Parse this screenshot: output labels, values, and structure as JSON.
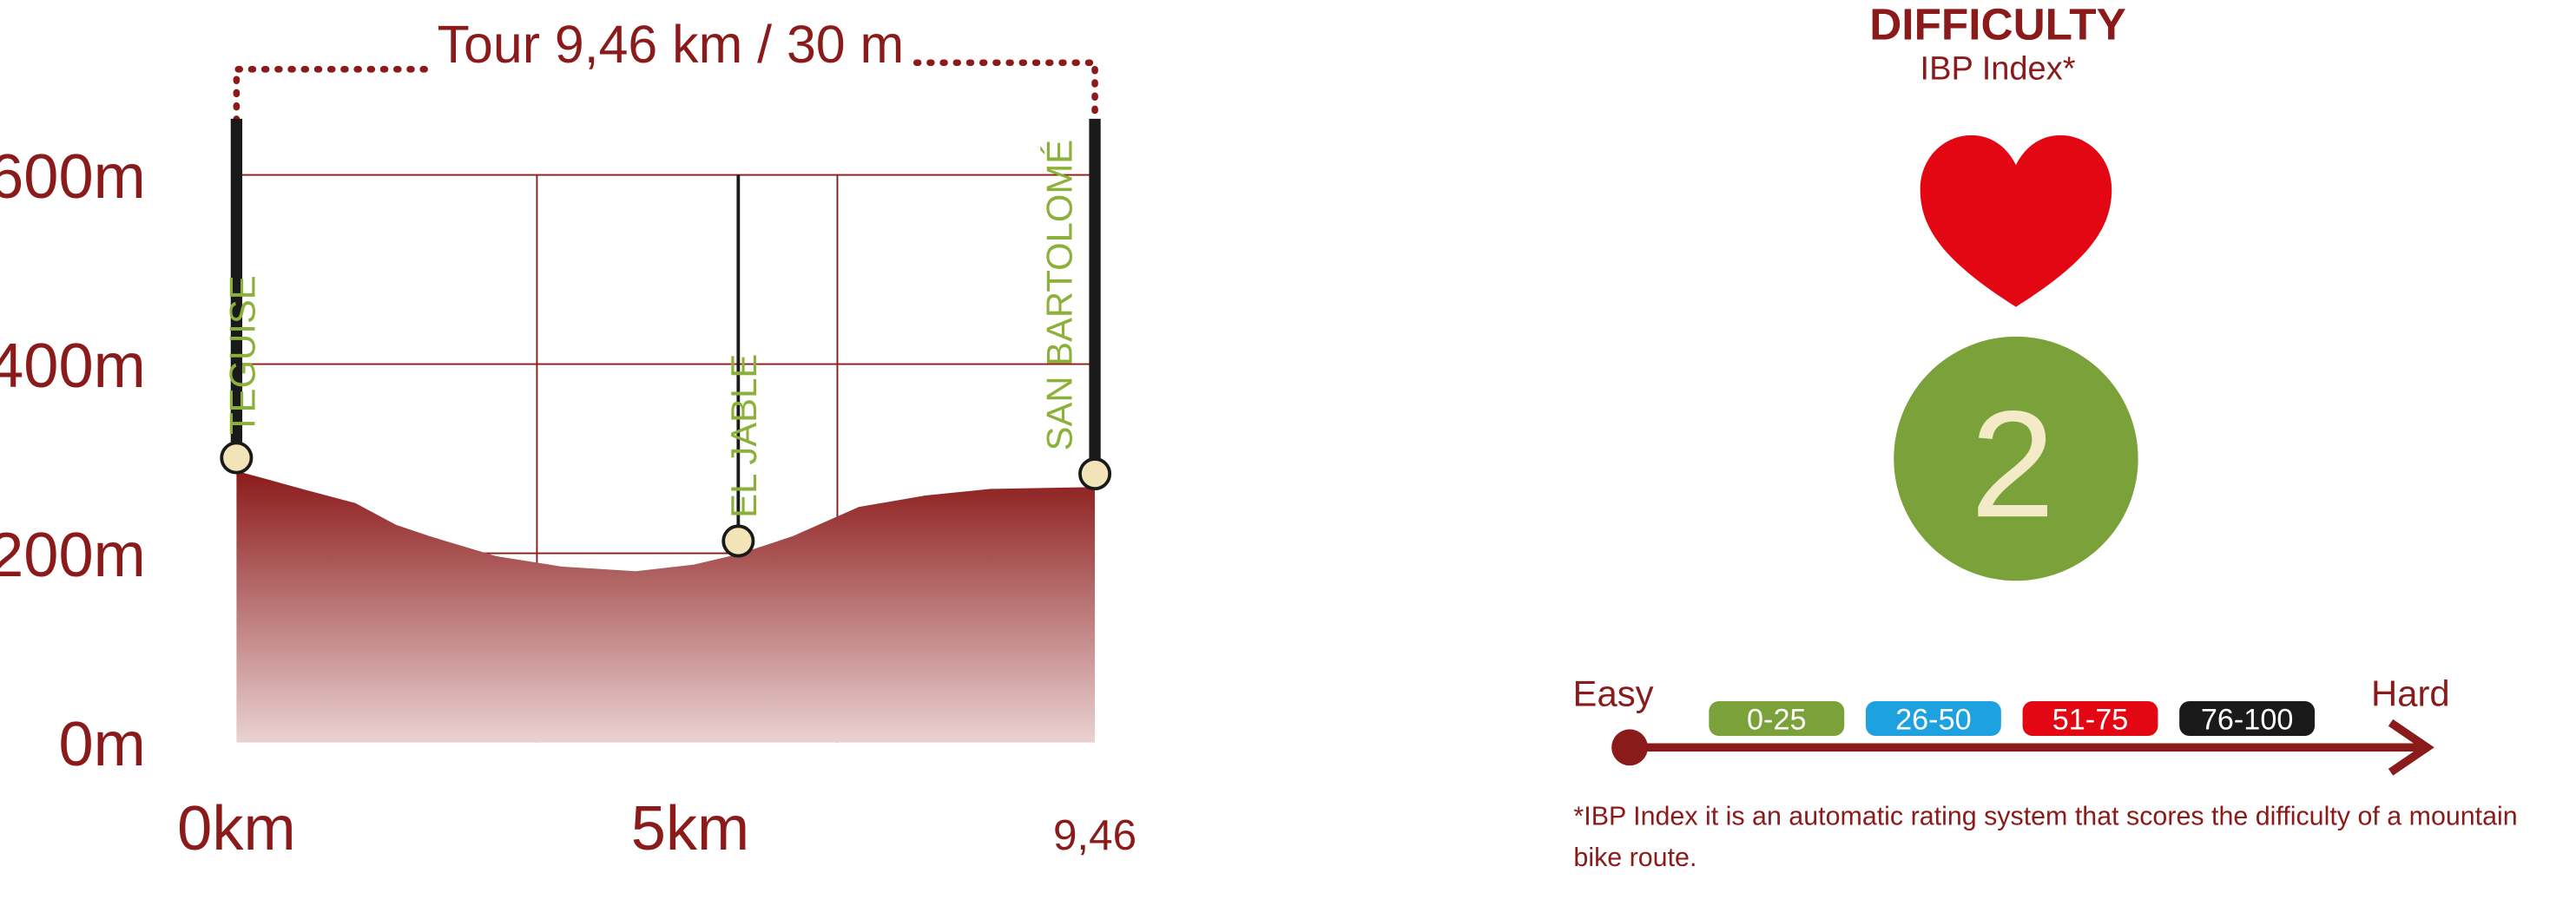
{
  "chart_data": {
    "type": "area",
    "title": "Tour 9,46 km / 30 m",
    "x": [
      0,
      0.31,
      0.76,
      1.31,
      1.76,
      2.13,
      2.86,
      3.58,
      4.4,
      5.04,
      5.53,
      6.13,
      6.86,
      7.59,
      8.31,
      9.46
    ],
    "values": [
      287,
      279,
      267,
      253,
      230,
      218,
      197,
      186,
      181,
      188,
      199,
      218,
      249,
      261,
      268,
      270
    ],
    "color": "#8b1a1a",
    "xlim": [
      0,
      9.46
    ],
    "xticks": [
      {
        "value": 0,
        "label": "0km"
      },
      {
        "value": 5,
        "label": "5km"
      },
      {
        "value": 9.46,
        "label": "9,46"
      }
    ],
    "ylim": [
      0,
      600
    ],
    "yticks": [
      {
        "value": 0,
        "label": "0m"
      },
      {
        "value": 200,
        "label": "200m"
      },
      {
        "value": 400,
        "label": "400m"
      },
      {
        "value": 600,
        "label": "600m"
      }
    ],
    "grid": true,
    "annotations": [
      {
        "text": "TEGUISE",
        "x": 0
      },
      {
        "text": "EL JABLE",
        "x": 5.53
      },
      {
        "text": "SAN BARTOLOMÉ",
        "x": 9.46
      }
    ]
  },
  "difficulty": {
    "title": "DIFFICULTY",
    "subtitle": "IBP Index*",
    "level": "2",
    "scale": {
      "easy": "Easy",
      "hard": "Hard",
      "ranges": [
        {
          "label": "0-25",
          "color": "#7ba23a"
        },
        {
          "label": "26-50",
          "color": "#1ea1df"
        },
        {
          "label": "51-75",
          "color": "#e30613"
        },
        {
          "label": "76-100",
          "color": "#1a1a1a"
        }
      ]
    },
    "footnote": [
      "*IBP Index it is an automatic rating system that scores the difficulty of a mountain",
      "bike route."
    ]
  }
}
